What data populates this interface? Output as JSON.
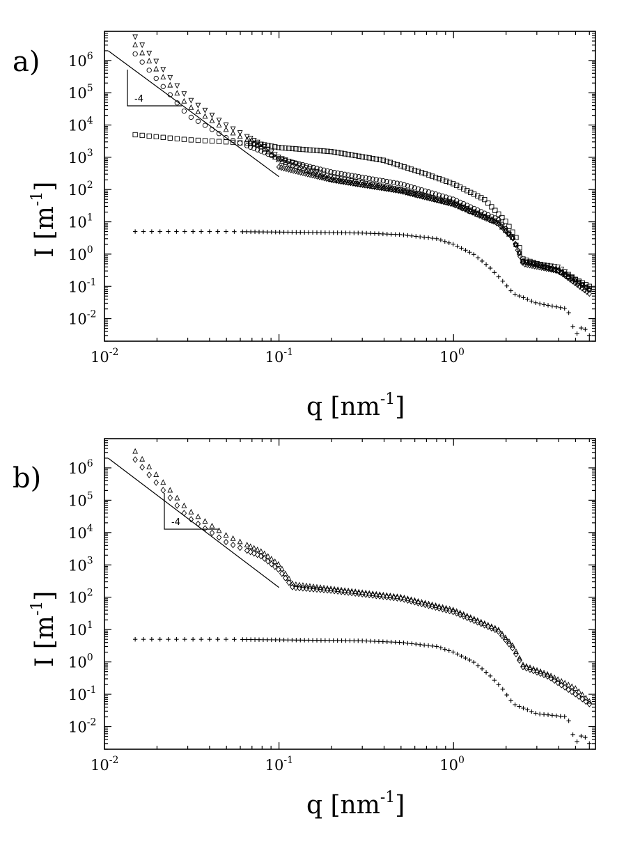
{
  "chart_data": [
    {
      "type": "scatter",
      "panel_label": "a)",
      "xscale": "log",
      "yscale": "log",
      "xlim": [
        0.01,
        6.5
      ],
      "ylim": [
        0.002,
        8000000
      ],
      "xlabel": {
        "base": "q [nm",
        "exp": "-1",
        "close": "]"
      },
      "ylabel": {
        "base": "I [m",
        "exp": "-1",
        "close": "]"
      },
      "xticks": [
        {
          "base": "10",
          "exp": "-2"
        },
        {
          "base": "10",
          "exp": "-1"
        },
        {
          "base": "10",
          "exp": "0"
        }
      ],
      "yticks": [
        {
          "base": "10",
          "exp": "-2"
        },
        {
          "base": "10",
          "exp": "-1"
        },
        {
          "base": "10",
          "exp": "0"
        },
        {
          "base": "10",
          "exp": "1"
        },
        {
          "base": "10",
          "exp": "2"
        },
        {
          "base": "10",
          "exp": "3"
        },
        {
          "base": "10",
          "exp": "4"
        },
        {
          "base": "10",
          "exp": "5"
        },
        {
          "base": "10",
          "exp": "6"
        }
      ],
      "power_law_line": {
        "x": [
          0.0105,
          0.1
        ],
        "y": [
          2000000,
          250
        ],
        "slope_label": "-4"
      },
      "series": [
        {
          "marker": "triangle-down",
          "x": [
            0.015,
            0.03,
            0.05,
            0.08,
            0.1,
            0.2,
            0.5,
            1.0,
            1.8,
            2.2,
            2.5,
            4.0,
            6.0
          ],
          "y": [
            5500000,
            70000,
            10000,
            2500,
            1000,
            250,
            100,
            40,
            10,
            3,
            0.6,
            0.4,
            0.08
          ]
        },
        {
          "marker": "triangle-up",
          "x": [
            0.015,
            0.03,
            0.05,
            0.08,
            0.1,
            0.2,
            0.5,
            1.0,
            1.8,
            2.2,
            2.5,
            4.0,
            6.0
          ],
          "y": [
            3000000,
            40000,
            7000,
            2000,
            800,
            200,
            90,
            35,
            9,
            3,
            0.6,
            0.3,
            0.08
          ]
        },
        {
          "marker": "circle",
          "x": [
            0.015,
            0.03,
            0.05,
            0.08,
            0.1,
            0.2,
            0.5,
            1.0,
            1.8,
            2.2,
            2.5,
            4.0,
            6.0
          ],
          "y": [
            1600000,
            20000,
            4000,
            1500,
            900,
            350,
            150,
            50,
            12,
            3,
            0.6,
            0.3,
            0.08
          ]
        },
        {
          "marker": "square",
          "x": [
            0.015,
            0.03,
            0.05,
            0.08,
            0.1,
            0.2,
            0.4,
            0.7,
            1.0,
            1.5,
            2.0,
            2.3,
            2.5,
            4.0,
            6.0
          ],
          "y": [
            5000,
            3500,
            3000,
            2500,
            2000,
            1500,
            800,
            300,
            150,
            50,
            10,
            3,
            0.7,
            0.3,
            0.1
          ]
        },
        {
          "marker": "diamond",
          "x": [
            0.1,
            0.2,
            0.5,
            1.0,
            1.8,
            2.2,
            2.5,
            4.0,
            6.0
          ],
          "y": [
            500,
            200,
            90,
            35,
            9,
            3,
            0.5,
            0.3,
            0.06
          ]
        },
        {
          "marker": "plus",
          "x": [
            0.015,
            0.05,
            0.1,
            0.3,
            0.5,
            0.8,
            1.0,
            1.3,
            1.6,
            1.9,
            2.2,
            3.0,
            4.5,
            5.0,
            5.5,
            6.0
          ],
          "y": [
            5,
            5,
            4.8,
            4.5,
            4.0,
            3.0,
            2.0,
            1.0,
            0.4,
            0.15,
            0.06,
            0.03,
            0.02,
            0.003,
            0.006,
            0.003
          ]
        }
      ]
    },
    {
      "type": "scatter",
      "panel_label": "b)",
      "xscale": "log",
      "yscale": "log",
      "xlim": [
        0.01,
        6.5
      ],
      "ylim": [
        0.002,
        8000000
      ],
      "xlabel": {
        "base": "q [nm",
        "exp": "-1",
        "close": "]"
      },
      "ylabel": {
        "base": "I [m",
        "exp": "-1",
        "close": "]"
      },
      "xticks": [
        {
          "base": "10",
          "exp": "-2"
        },
        {
          "base": "10",
          "exp": "-1"
        },
        {
          "base": "10",
          "exp": "0"
        }
      ],
      "yticks": [
        {
          "base": "10",
          "exp": "-2"
        },
        {
          "base": "10",
          "exp": "-1"
        },
        {
          "base": "10",
          "exp": "0"
        },
        {
          "base": "10",
          "exp": "1"
        },
        {
          "base": "10",
          "exp": "2"
        },
        {
          "base": "10",
          "exp": "3"
        },
        {
          "base": "10",
          "exp": "4"
        },
        {
          "base": "10",
          "exp": "5"
        },
        {
          "base": "10",
          "exp": "6"
        }
      ],
      "power_law_line": {
        "x": [
          0.0105,
          0.1
        ],
        "y": [
          2000000,
          200
        ],
        "slope_label": "-4"
      },
      "series": [
        {
          "marker": "triangle-up",
          "x": [
            0.015,
            0.03,
            0.05,
            0.08,
            0.1,
            0.12,
            0.2,
            0.5,
            1.0,
            1.8,
            2.2,
            2.5,
            3.5,
            5.0,
            6.0
          ],
          "y": [
            3200000,
            50000,
            8000,
            2500,
            1000,
            250,
            180,
            100,
            40,
            10,
            3,
            0.8,
            0.4,
            0.15,
            0.06
          ]
        },
        {
          "marker": "diamond",
          "x": [
            0.015,
            0.03,
            0.05,
            0.08,
            0.1,
            0.12,
            0.2,
            0.5,
            1.0,
            1.8,
            2.2,
            2.5,
            3.5,
            5.0,
            6.0
          ],
          "y": [
            1800000,
            30000,
            5000,
            1800,
            700,
            200,
            160,
            90,
            35,
            9,
            2.5,
            0.7,
            0.35,
            0.1,
            0.05
          ]
        },
        {
          "marker": "plus",
          "x": [
            0.015,
            0.05,
            0.1,
            0.3,
            0.5,
            0.8,
            1.0,
            1.3,
            1.6,
            1.9,
            2.2,
            3.0,
            4.5,
            5.0,
            5.5,
            6.0
          ],
          "y": [
            5,
            5,
            4.8,
            4.5,
            4.0,
            3.0,
            2.0,
            1.0,
            0.4,
            0.15,
            0.05,
            0.025,
            0.02,
            0.003,
            0.006,
            0.003
          ]
        }
      ]
    }
  ]
}
